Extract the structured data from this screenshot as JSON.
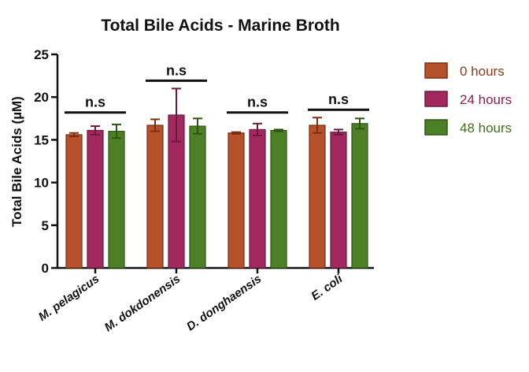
{
  "chart_data": {
    "type": "bar",
    "title": "Total Bile Acids - Marine Broth",
    "xlabel": "",
    "ylabel": "Total Bile Acids  (µM)",
    "ylim": [
      0,
      25
    ],
    "yticks": [
      0,
      5,
      10,
      15,
      20,
      25
    ],
    "grid": false,
    "legend_position": "right",
    "categories": [
      "M. pelagicus",
      "M. dokdonensis",
      "D. donghaensis",
      "E. coli"
    ],
    "series": [
      {
        "name": "0 hours",
        "color": "#b5522b",
        "edge": "#7a2f14",
        "label_color": "#8b3a1a",
        "values": [
          15.6,
          16.7,
          15.8,
          16.7
        ],
        "errors": [
          0.2,
          0.7,
          0.1,
          0.9
        ]
      },
      {
        "name": "24 hours",
        "color": "#a3285f",
        "edge": "#6a1a3d",
        "label_color": "#8b1f4e",
        "values": [
          16.1,
          17.9,
          16.2,
          15.9
        ],
        "errors": [
          0.5,
          3.1,
          0.7,
          0.3
        ]
      },
      {
        "name": "48 hours",
        "color": "#4d7f26",
        "edge": "#2f5514",
        "label_color": "#3f6e1e",
        "values": [
          16.0,
          16.6,
          16.1,
          16.9
        ],
        "errors": [
          0.8,
          0.9,
          0.1,
          0.6
        ]
      }
    ],
    "annotations": [
      {
        "text": "n.s",
        "group": 0
      },
      {
        "text": "n.s",
        "group": 1
      },
      {
        "text": "n.s",
        "group": 2
      },
      {
        "text": "n.s",
        "group": 3
      }
    ]
  }
}
